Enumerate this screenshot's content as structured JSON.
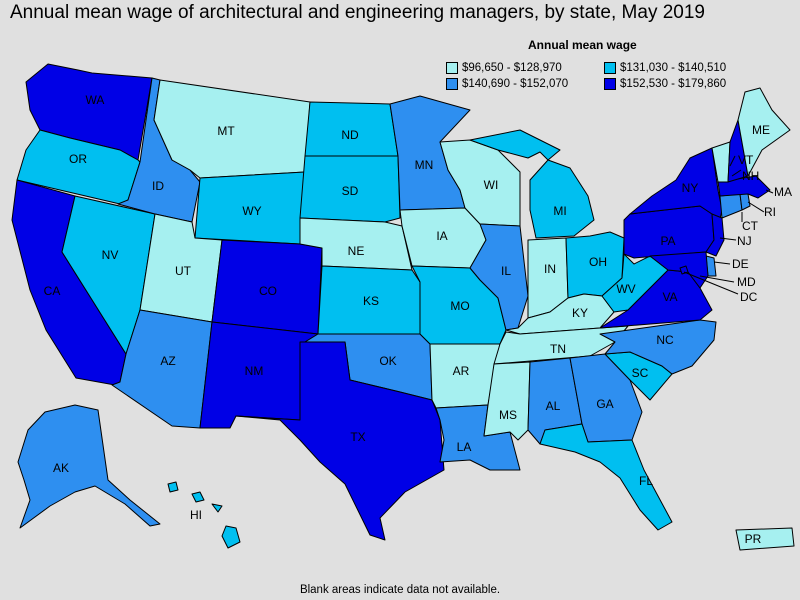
{
  "title": "Annual mean wage of architectural and engineering managers, by state, May 2019",
  "legend": {
    "title": "Annual mean wage",
    "items": [
      {
        "label": "$96,650 - $128,970",
        "color": "#a6f0f0"
      },
      {
        "label": "$131,030 - $140,510",
        "color": "#00bff0"
      },
      {
        "label": "$140,690 - $152,070",
        "color": "#2e8ff0"
      },
      {
        "label": "$152,530 - $179,860",
        "color": "#0000e6"
      }
    ]
  },
  "footnote": "Blank areas indicate data not available.",
  "states": [
    {
      "code": "WA",
      "tier": 3
    },
    {
      "code": "OR",
      "tier": 1
    },
    {
      "code": "CA",
      "tier": 3
    },
    {
      "code": "NV",
      "tier": 1
    },
    {
      "code": "ID",
      "tier": 2
    },
    {
      "code": "MT",
      "tier": 0
    },
    {
      "code": "WY",
      "tier": 1
    },
    {
      "code": "UT",
      "tier": 0
    },
    {
      "code": "AZ",
      "tier": 2
    },
    {
      "code": "CO",
      "tier": 3
    },
    {
      "code": "NM",
      "tier": 3
    },
    {
      "code": "ND",
      "tier": 1
    },
    {
      "code": "SD",
      "tier": 1
    },
    {
      "code": "NE",
      "tier": 0
    },
    {
      "code": "KS",
      "tier": 1
    },
    {
      "code": "OK",
      "tier": 2
    },
    {
      "code": "TX",
      "tier": 3
    },
    {
      "code": "MN",
      "tier": 2
    },
    {
      "code": "IA",
      "tier": 0
    },
    {
      "code": "MO",
      "tier": 1
    },
    {
      "code": "AR",
      "tier": 0
    },
    {
      "code": "LA",
      "tier": 2
    },
    {
      "code": "WI",
      "tier": 0
    },
    {
      "code": "IL",
      "tier": 2
    },
    {
      "code": "MI",
      "tier": 1
    },
    {
      "code": "IN",
      "tier": 0
    },
    {
      "code": "OH",
      "tier": 1
    },
    {
      "code": "KY",
      "tier": 0
    },
    {
      "code": "TN",
      "tier": 0
    },
    {
      "code": "MS",
      "tier": 0
    },
    {
      "code": "AL",
      "tier": 2
    },
    {
      "code": "GA",
      "tier": 2
    },
    {
      "code": "FL",
      "tier": 1
    },
    {
      "code": "SC",
      "tier": 1
    },
    {
      "code": "NC",
      "tier": 2
    },
    {
      "code": "VA",
      "tier": 3
    },
    {
      "code": "WV",
      "tier": 1
    },
    {
      "code": "PA",
      "tier": 3
    },
    {
      "code": "NY",
      "tier": 3
    },
    {
      "code": "VT",
      "tier": 0
    },
    {
      "code": "NH",
      "tier": 3
    },
    {
      "code": "ME",
      "tier": 0
    },
    {
      "code": "MA",
      "tier": 3
    },
    {
      "code": "RI",
      "tier": 2
    },
    {
      "code": "CT",
      "tier": 2
    },
    {
      "code": "NJ",
      "tier": 3
    },
    {
      "code": "DE",
      "tier": 2
    },
    {
      "code": "MD",
      "tier": 3
    },
    {
      "code": "DC",
      "tier": 3
    },
    {
      "code": "AK",
      "tier": 2
    },
    {
      "code": "HI",
      "tier": 1
    },
    {
      "code": "PR",
      "tier": 0
    }
  ]
}
